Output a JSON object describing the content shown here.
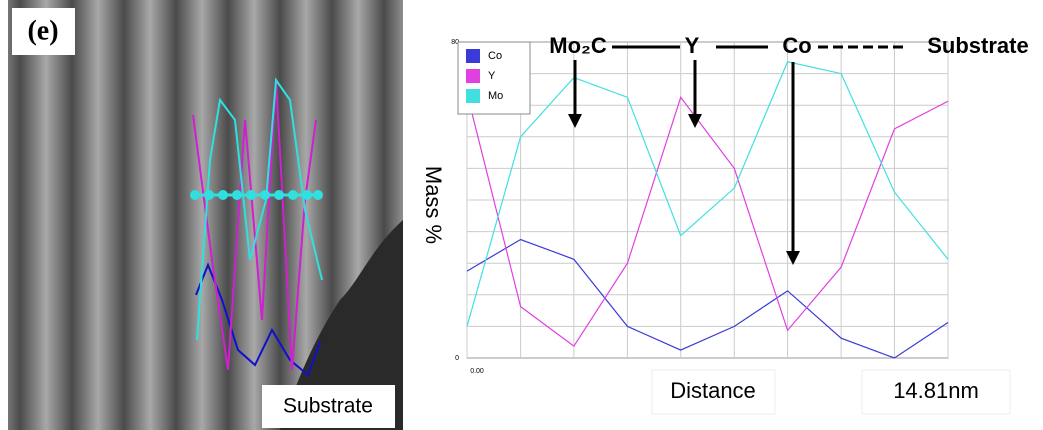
{
  "panel_label": "(e)",
  "image_label": "Substrate",
  "chart_data": {
    "type": "line",
    "ylabel": "Mass %",
    "xlabel": "Distance",
    "x_end_label": "14.81nm",
    "annotations": [
      "Mo₂C",
      "Y",
      "Co",
      "Substrate"
    ],
    "x": [
      0,
      1.65,
      3.29,
      4.94,
      6.58,
      8.23,
      9.87,
      11.52,
      13.16,
      14.81
    ],
    "xlim": [
      0,
      14.81
    ],
    "xticks": [
      {
        "value": 0,
        "label": "0.00"
      }
    ],
    "ylim": [
      0,
      80
    ],
    "yticks": [
      0,
      80
    ],
    "grid": true,
    "legend": "upper left",
    "series": [
      {
        "name": "Co",
        "color": "#3a3ad8",
        "values": [
          22,
          30,
          25,
          8,
          2,
          8,
          17,
          5,
          0,
          9
        ]
      },
      {
        "name": "Y",
        "color": "#e040e0",
        "values": [
          67,
          13,
          3,
          24,
          66,
          48,
          7,
          23,
          58,
          65
        ]
      },
      {
        "name": "Mo",
        "color": "#40e0e0",
        "values": [
          8,
          56,
          71,
          66,
          31,
          43,
          75,
          72,
          42,
          25
        ]
      }
    ]
  }
}
